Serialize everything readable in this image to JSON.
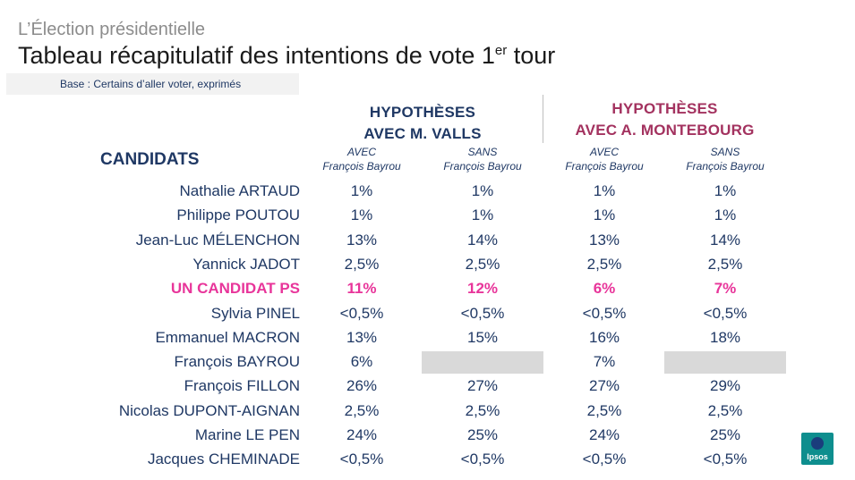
{
  "header": {
    "kicker": "L’Élection présidentielle",
    "title_main": "Tableau récapitulatif des intentions de vote 1",
    "title_sup": "er",
    "title_end": " tour",
    "base": "Base : Certains d’aller voter, exprimés"
  },
  "hypotheses": {
    "valls": {
      "line1": "HYPOTHÈSES",
      "line2": "AVEC M. VALLS"
    },
    "montebourg": {
      "line1": "HYPOTHÈSES",
      "line2": "AVEC A. MONTEBOURG"
    }
  },
  "columns": {
    "candidates_header": "CANDIDATS",
    "sub": [
      {
        "l1": "AVEC",
        "l2": "François Bayrou"
      },
      {
        "l1": "SANS",
        "l2": "François Bayrou"
      },
      {
        "l1": "AVEC",
        "l2": "François Bayrou"
      },
      {
        "l1": "SANS",
        "l2": "François Bayrou"
      }
    ]
  },
  "rows": [
    {
      "name": "Nathalie ARTAUD",
      "v": [
        "1%",
        "1%",
        "1%",
        "1%"
      ]
    },
    {
      "name": "Philippe POUTOU",
      "v": [
        "1%",
        "1%",
        "1%",
        "1%"
      ]
    },
    {
      "name": "Jean-Luc MÉLENCHON",
      "v": [
        "13%",
        "14%",
        "13%",
        "14%"
      ]
    },
    {
      "name": "Yannick JADOT",
      "v": [
        "2,5%",
        "2,5%",
        "2,5%",
        "2,5%"
      ]
    },
    {
      "name": "UN CANDIDAT PS",
      "v": [
        "11%",
        "12%",
        "6%",
        "7%"
      ]
    },
    {
      "name": "Sylvia PINEL",
      "v": [
        "<0,5%",
        "<0,5%",
        "<0,5%",
        "<0,5%"
      ]
    },
    {
      "name": "Emmanuel MACRON",
      "v": [
        "13%",
        "15%",
        "16%",
        "18%"
      ]
    },
    {
      "name": "François BAYROU",
      "v": [
        "6%",
        "",
        "7%",
        ""
      ]
    },
    {
      "name": "François FILLON",
      "v": [
        "26%",
        "27%",
        "27%",
        "29%"
      ]
    },
    {
      "name": "Nicolas DUPONT-AIGNAN",
      "v": [
        "2,5%",
        "2,5%",
        "2,5%",
        "2,5%"
      ]
    },
    {
      "name": "Marine LE PEN",
      "v": [
        "24%",
        "25%",
        "24%",
        "25%"
      ]
    },
    {
      "name": "Jacques CHEMINADE",
      "v": [
        "<0,5%",
        "<0,5%",
        "<0,5%",
        "<0,5%"
      ]
    }
  ],
  "logo": {
    "text": "Ipsos"
  },
  "colors": {
    "navy": "#1f3864",
    "ps_pink": "#e8359a",
    "montebourg": "#a3325f",
    "empty_cell": "#d9d9d9"
  }
}
